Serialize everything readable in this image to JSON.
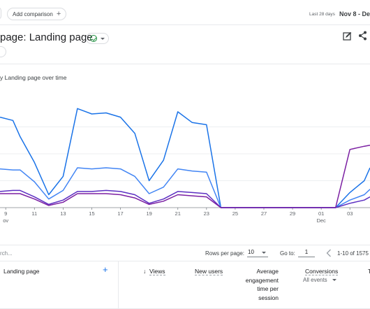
{
  "toolbar": {
    "add_comparison_label": "Add comparison",
    "add_comparison_icon": "plus-icon",
    "date_caption": "Last 28 days",
    "date_range": "Nov 8 - Dec"
  },
  "report": {
    "title": "page: Landing page",
    "status_icon": "check-circle-icon",
    "actions": [
      "edit-report-icon",
      "share-icon"
    ]
  },
  "chart": {
    "title": "y Landing page over time"
  },
  "chart_data": {
    "type": "line",
    "x_ticks": [
      {
        "day": 9,
        "label": "9",
        "sub": "ov"
      },
      {
        "day": 11,
        "label": "11"
      },
      {
        "day": 13,
        "label": "13"
      },
      {
        "day": 15,
        "label": "15"
      },
      {
        "day": 17,
        "label": "17"
      },
      {
        "day": 19,
        "label": "19"
      },
      {
        "day": 21,
        "label": "21"
      },
      {
        "day": 23,
        "label": "23"
      },
      {
        "day": 25,
        "label": "25"
      },
      {
        "day": 27,
        "label": "27"
      },
      {
        "day": 29,
        "label": "29"
      },
      {
        "day": 31,
        "label": "01",
        "sub": "Dec"
      },
      {
        "day": 33,
        "label": "03"
      }
    ],
    "x_domain": [
      8.6,
      34.4
    ],
    "y_domain": [
      0,
      1
    ],
    "gridlines": [
      0.25,
      0.5,
      0.75
    ],
    "series": [
      {
        "color": "#1a73e8",
        "points": [
          [
            8.6,
            0.84
          ],
          [
            9.5,
            0.81
          ],
          [
            10,
            0.66
          ],
          [
            11,
            0.42
          ],
          [
            12,
            0.12
          ],
          [
            13,
            0.29
          ],
          [
            14,
            0.92
          ],
          [
            15,
            0.87
          ],
          [
            16,
            0.88
          ],
          [
            17,
            0.84
          ],
          [
            18,
            0.69
          ],
          [
            19,
            0.25
          ],
          [
            20,
            0.44
          ],
          [
            21,
            0.89
          ],
          [
            22,
            0.79
          ],
          [
            23,
            0.77
          ],
          [
            24,
            0
          ],
          [
            25,
            0
          ],
          [
            26,
            0
          ],
          [
            27,
            0
          ],
          [
            28,
            0
          ],
          [
            29,
            0
          ],
          [
            30,
            0
          ],
          [
            31,
            0
          ],
          [
            32,
            0
          ],
          [
            33,
            0.14
          ],
          [
            34,
            0.25
          ],
          [
            34.4,
            0.37
          ]
        ]
      },
      {
        "color": "#4285f4",
        "points": [
          [
            8.6,
            0.36
          ],
          [
            9.5,
            0.35
          ],
          [
            10,
            0.35
          ],
          [
            11,
            0.24
          ],
          [
            12,
            0.08
          ],
          [
            13,
            0.16
          ],
          [
            14,
            0.37
          ],
          [
            15,
            0.36
          ],
          [
            16,
            0.37
          ],
          [
            17,
            0.36
          ],
          [
            18,
            0.29
          ],
          [
            19,
            0.13
          ],
          [
            20,
            0.19
          ],
          [
            21,
            0.36
          ],
          [
            22,
            0.34
          ],
          [
            23,
            0.33
          ],
          [
            24,
            0
          ],
          [
            25,
            0
          ],
          [
            26,
            0
          ],
          [
            27,
            0
          ],
          [
            28,
            0
          ],
          [
            29,
            0
          ],
          [
            30,
            0
          ],
          [
            31,
            0
          ],
          [
            32,
            0
          ],
          [
            33,
            0.07
          ],
          [
            34,
            0.12
          ],
          [
            34.4,
            0.17
          ]
        ]
      },
      {
        "color": "#5c2fc2",
        "points": [
          [
            8.6,
            0.15
          ],
          [
            9.5,
            0.16
          ],
          [
            10,
            0.16
          ],
          [
            11,
            0.1
          ],
          [
            12,
            0.03
          ],
          [
            13,
            0.07
          ],
          [
            14,
            0.15
          ],
          [
            15,
            0.15
          ],
          [
            16,
            0.16
          ],
          [
            17,
            0.15
          ],
          [
            18,
            0.12
          ],
          [
            19,
            0.04
          ],
          [
            20,
            0.08
          ],
          [
            21,
            0.15
          ],
          [
            22,
            0.14
          ],
          [
            23,
            0.13
          ],
          [
            24,
            0
          ],
          [
            25,
            0
          ],
          [
            26,
            0
          ],
          [
            27,
            0
          ],
          [
            28,
            0
          ],
          [
            29,
            0
          ],
          [
            30,
            0
          ],
          [
            31,
            0
          ],
          [
            32,
            0
          ],
          [
            33,
            0.04
          ],
          [
            34,
            0.07
          ],
          [
            34.4,
            0.1
          ]
        ]
      },
      {
        "color": "#7b1fa2",
        "points": [
          [
            8.6,
            0.13
          ],
          [
            9.5,
            0.13
          ],
          [
            10,
            0.13
          ],
          [
            11,
            0.08
          ],
          [
            12,
            0.02
          ],
          [
            13,
            0.05
          ],
          [
            14,
            0.13
          ],
          [
            15,
            0.13
          ],
          [
            16,
            0.13
          ],
          [
            17,
            0.12
          ],
          [
            18,
            0.09
          ],
          [
            19,
            0.03
          ],
          [
            20,
            0.06
          ],
          [
            21,
            0.12
          ],
          [
            22,
            0.11
          ],
          [
            23,
            0.1
          ],
          [
            24,
            0
          ],
          [
            25,
            0
          ],
          [
            26,
            0
          ],
          [
            27,
            0
          ],
          [
            28,
            0
          ],
          [
            29,
            0
          ],
          [
            30,
            0
          ],
          [
            31,
            0
          ],
          [
            32,
            0
          ],
          [
            33,
            0.54
          ],
          [
            34,
            0.57
          ],
          [
            34.4,
            0.58
          ]
        ]
      }
    ]
  },
  "table_controls": {
    "search_placeholder": "rch...",
    "rows_per_page_label": "Rows per page:",
    "rows_per_page_value": "10",
    "goto_label": "Go to:",
    "goto_value": "1",
    "range_text": "1-10 of 1575"
  },
  "table_header": {
    "dimension": "Landing page",
    "add_dimension_icon": "plus-icon",
    "views": "Views",
    "sort_icon": "arrow-down-icon",
    "new_users": "New users",
    "avg_engagement_lines": [
      "Average",
      "engagement",
      "time per",
      "session"
    ],
    "conversions": "Conversions",
    "conversions_filter": "All events",
    "cut_column": "T"
  }
}
